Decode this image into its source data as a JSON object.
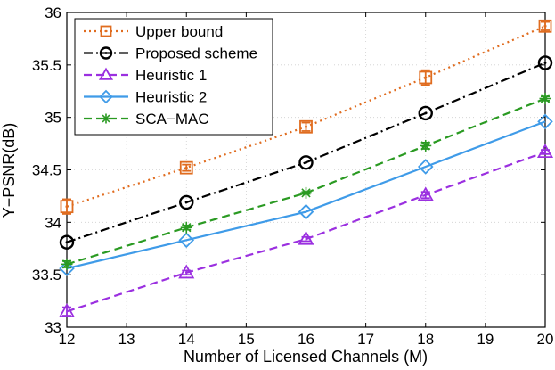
{
  "chart_data": {
    "type": "line",
    "title": "",
    "xlabel": "Number of Licensed Channels (M)",
    "ylabel": "Y−PSNR(dB)",
    "xlim": [
      12,
      20
    ],
    "ylim": [
      33,
      36
    ],
    "xticks": [
      12,
      13,
      14,
      15,
      16,
      17,
      18,
      19,
      20
    ],
    "yticks": [
      33,
      33.5,
      34,
      34.5,
      35,
      35.5,
      36
    ],
    "xtick_labels": [
      "12",
      "13",
      "14",
      "15",
      "16",
      "17",
      "18",
      "19",
      "20"
    ],
    "ytick_labels": [
      "33",
      "33.5",
      "34",
      "34.5",
      "35",
      "35.5",
      "36"
    ],
    "grid": true,
    "legend_position": "top-left",
    "series": [
      {
        "name": "Upper bound",
        "color": "#e06c1f",
        "line": "dotted",
        "marker": "square",
        "x": [
          12,
          14,
          16,
          18,
          20
        ],
        "values": [
          34.15,
          34.52,
          34.91,
          35.38,
          35.87
        ],
        "error": [
          0.07,
          0.03,
          0.04,
          0.07,
          0.04
        ]
      },
      {
        "name": "Proposed scheme",
        "color": "#000000",
        "line": "dashdot",
        "marker": "circle",
        "x": [
          12,
          14,
          16,
          18,
          20
        ],
        "values": [
          33.81,
          34.19,
          34.57,
          35.04,
          35.52
        ],
        "error": [
          0,
          0,
          0,
          0,
          0
        ]
      },
      {
        "name": "Heuristic 1",
        "color": "#9b30e0",
        "line": "dashed",
        "marker": "triangle",
        "x": [
          12,
          14,
          16,
          18,
          20
        ],
        "values": [
          33.15,
          33.52,
          33.84,
          34.26,
          34.67
        ],
        "error": [
          0.04,
          0.02,
          0.02,
          0.03,
          0.02
        ]
      },
      {
        "name": "Heuristic 2",
        "color": "#3f9be8",
        "line": "solid",
        "marker": "diamond",
        "x": [
          12,
          14,
          16,
          18,
          20
        ],
        "values": [
          33.56,
          33.83,
          34.1,
          34.53,
          34.96
        ],
        "error": [
          0,
          0,
          0,
          0,
          0
        ]
      },
      {
        "name": "SCA−MAC",
        "color": "#2a9a22",
        "line": "dashed",
        "marker": "asterisk",
        "x": [
          12,
          14,
          16,
          18,
          20
        ],
        "values": [
          33.6,
          33.95,
          34.28,
          34.73,
          35.18
        ],
        "error": [
          0.03,
          0.02,
          0.01,
          0.03,
          0.02
        ]
      }
    ]
  }
}
